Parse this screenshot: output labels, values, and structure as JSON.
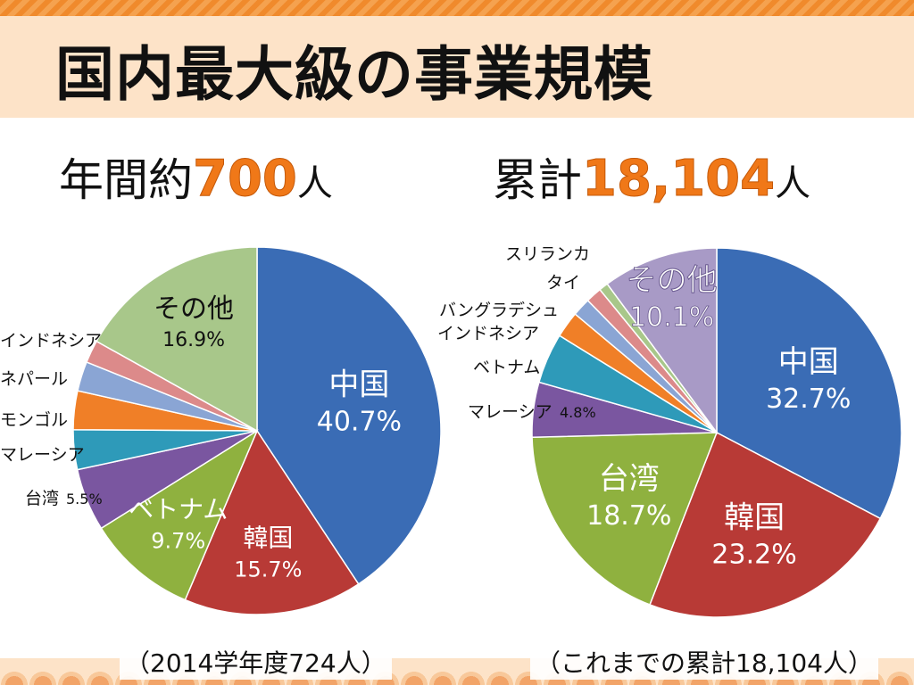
{
  "title": "国内最大級の事業規模",
  "headlines": {
    "left": {
      "prefix": "年間約",
      "number": "700",
      "unit": "人"
    },
    "right": {
      "prefix": "累計",
      "number": "18,104",
      "unit": "人"
    }
  },
  "colors": {
    "title_band": "#fde3c8",
    "accent_orange": "#f07818",
    "china": "#3a6cb5",
    "korea": "#b83a36",
    "taiwan": "#8fb13f",
    "vietnam": "#8fb13f",
    "malaysia": "#7a56a0",
    "mongolia": "#f07f27",
    "nepal": "#8aa5d4",
    "indonesia": "#dc8a8a",
    "others": "#a8c78a"
  },
  "chart_data": [
    {
      "type": "pie",
      "caption": "（2014学年度724人）",
      "slices": [
        {
          "label": "中国",
          "value": 40.7,
          "value_label": "40.7%",
          "color": "#3a6cb5"
        },
        {
          "label": "韓国",
          "value": 15.7,
          "value_label": "15.7%",
          "color": "#b83a36"
        },
        {
          "label": "ベトナム",
          "value": 9.7,
          "value_label": "9.7%",
          "color": "#8fb13f"
        },
        {
          "label": "台湾",
          "value": 5.5,
          "value_label": "5.5%",
          "color": "#7a56a0"
        },
        {
          "label": "マレーシア",
          "value": 3.5,
          "value_label": "",
          "color": "#2e9ab9"
        },
        {
          "label": "モンゴル",
          "value": 3.4,
          "value_label": "",
          "color": "#f07f27"
        },
        {
          "label": "ネパール",
          "value": 2.6,
          "value_label": "",
          "color": "#8aa5d4"
        },
        {
          "label": "インドネシア",
          "value": 2.0,
          "value_label": "",
          "color": "#dc8a8a"
        },
        {
          "label": "その他",
          "value": 16.9,
          "value_label": "16.9%",
          "color": "#a8c78a"
        }
      ]
    },
    {
      "type": "pie",
      "caption": "（これまでの累計18,104人）",
      "slices": [
        {
          "label": "中国",
          "value": 32.7,
          "value_label": "32.7%",
          "color": "#3a6cb5"
        },
        {
          "label": "韓国",
          "value": 23.2,
          "value_label": "23.2%",
          "color": "#b83a36"
        },
        {
          "label": "台湾",
          "value": 18.7,
          "value_label": "18.7%",
          "color": "#8fb13f"
        },
        {
          "label": "マレーシア",
          "value": 4.8,
          "value_label": "4.8%",
          "color": "#7a56a0"
        },
        {
          "label": "ベトナム",
          "value": 4.4,
          "value_label": "",
          "color": "#2e9ab9"
        },
        {
          "label": "インドネシア",
          "value": 2.3,
          "value_label": "",
          "color": "#f07f27"
        },
        {
          "label": "バングラデシュ",
          "value": 1.6,
          "value_label": "",
          "color": "#8aa5d4"
        },
        {
          "label": "タイ",
          "value": 1.4,
          "value_label": "",
          "color": "#dc8a8a"
        },
        {
          "label": "スリランカ",
          "value": 0.8,
          "value_label": "",
          "color": "#a8c78a"
        },
        {
          "label": "その他",
          "value": 10.1,
          "value_label": "10.1%",
          "color": "#a89ac6"
        }
      ]
    }
  ]
}
